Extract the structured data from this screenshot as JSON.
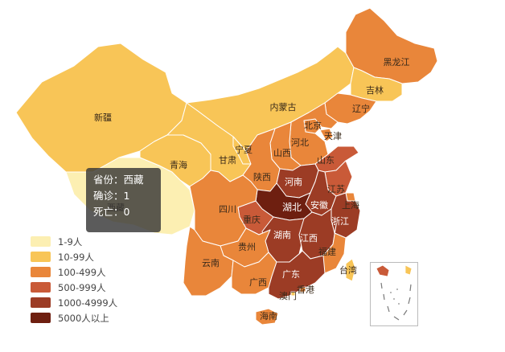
{
  "colors": {
    "l1": "#fcefb2",
    "l2": "#f8c557",
    "l3": "#e9863a",
    "l4": "#c95a38",
    "l5": "#9c3c25",
    "l6": "#6e1f10"
  },
  "legend": [
    {
      "label": "1-9人",
      "color": "#fcefb2"
    },
    {
      "label": "10-99人",
      "color": "#f8c557"
    },
    {
      "label": "100-499人",
      "color": "#e9863a"
    },
    {
      "label": "500-999人",
      "color": "#c95a38"
    },
    {
      "label": "1000-4999人",
      "color": "#9c3c25"
    },
    {
      "label": "5000人以上",
      "color": "#6e1f10"
    }
  ],
  "tooltip": {
    "province_line": "省份：西藏",
    "confirmed_line": "确诊：1",
    "deaths_line": "死亡：0"
  },
  "provinces": [
    {
      "name": "新疆",
      "level": "l2"
    },
    {
      "name": "西藏",
      "level": "l1"
    },
    {
      "name": "青海",
      "level": "l2"
    },
    {
      "name": "甘肃",
      "level": "l2"
    },
    {
      "name": "内蒙古",
      "level": "l2"
    },
    {
      "name": "宁夏",
      "level": "l2"
    },
    {
      "name": "黑龙江",
      "level": "l3"
    },
    {
      "name": "吉林",
      "level": "l2"
    },
    {
      "name": "辽宁",
      "level": "l3"
    },
    {
      "name": "北京",
      "level": "l3"
    },
    {
      "name": "天津",
      "level": "l3"
    },
    {
      "name": "河北",
      "level": "l3"
    },
    {
      "name": "山西",
      "level": "l3"
    },
    {
      "name": "陕西",
      "level": "l3"
    },
    {
      "name": "山东",
      "level": "l4"
    },
    {
      "name": "河南",
      "level": "l5"
    },
    {
      "name": "江苏",
      "level": "l4"
    },
    {
      "name": "安徽",
      "level": "l5"
    },
    {
      "name": "上海",
      "level": "l3"
    },
    {
      "name": "湖北",
      "level": "l6"
    },
    {
      "name": "重庆",
      "level": "l4"
    },
    {
      "name": "四川",
      "level": "l3"
    },
    {
      "name": "湖南",
      "level": "l5"
    },
    {
      "name": "江西",
      "level": "l5"
    },
    {
      "name": "浙江",
      "level": "l5"
    },
    {
      "name": "福建",
      "level": "l3"
    },
    {
      "name": "贵州",
      "level": "l3"
    },
    {
      "name": "云南",
      "level": "l3"
    },
    {
      "name": "广西",
      "level": "l3"
    },
    {
      "name": "广东",
      "level": "l5"
    },
    {
      "name": "香港",
      "level": "l3"
    },
    {
      "name": "澳门",
      "level": "l2"
    },
    {
      "name": "台湾",
      "level": "l2"
    },
    {
      "name": "海南",
      "level": "l3"
    }
  ]
}
